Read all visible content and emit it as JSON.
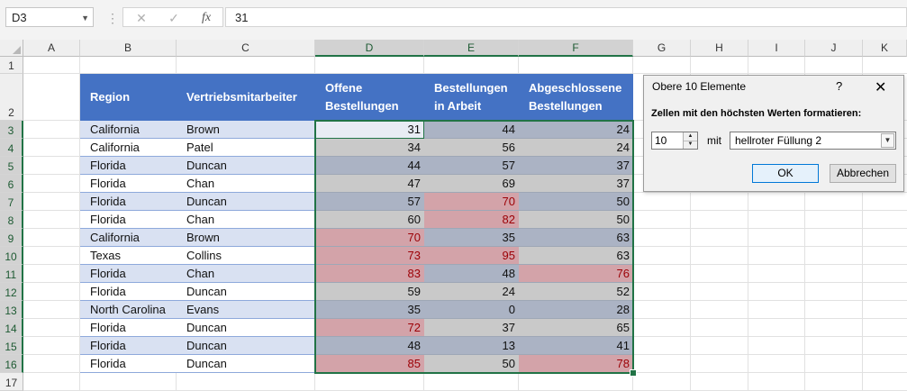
{
  "formula_bar": {
    "name_box": "D3",
    "dots": "⋮",
    "cancel_glyph": "✕",
    "enter_glyph": "✓",
    "function_glyph": "fx",
    "formula_value": "31"
  },
  "columns": [
    "A",
    "B",
    "C",
    "D",
    "E",
    "F",
    "G",
    "H",
    "I",
    "J",
    "K"
  ],
  "rows": [
    "1",
    "2",
    "3",
    "4",
    "5",
    "6",
    "7",
    "8",
    "9",
    "10",
    "11",
    "12",
    "13",
    "14",
    "15",
    "16",
    "17"
  ],
  "table": {
    "headers": [
      "Region",
      "Vertriebsmitarbeiter",
      "Offene Bestellungen",
      "Bestellungen in Arbeit",
      "Abgeschlossene Bestellungen"
    ],
    "rows": [
      {
        "region": "California",
        "rep": "Brown",
        "d": "31",
        "e": "44",
        "f": "24"
      },
      {
        "region": "California",
        "rep": "Patel",
        "d": "34",
        "e": "56",
        "f": "24"
      },
      {
        "region": "Florida",
        "rep": "Duncan",
        "d": "44",
        "e": "57",
        "f": "37"
      },
      {
        "region": "Florida",
        "rep": "Chan",
        "d": "47",
        "e": "69",
        "f": "37"
      },
      {
        "region": "Florida",
        "rep": "Duncan",
        "d": "57",
        "e": "70",
        "f": "50"
      },
      {
        "region": "Florida",
        "rep": "Chan",
        "d": "60",
        "e": "82",
        "f": "50"
      },
      {
        "region": "California",
        "rep": "Brown",
        "d": "70",
        "e": "35",
        "f": "63"
      },
      {
        "region": "Texas",
        "rep": "Collins",
        "d": "73",
        "e": "95",
        "f": "63"
      },
      {
        "region": "Florida",
        "rep": "Chan",
        "d": "83",
        "e": "48",
        "f": "76"
      },
      {
        "region": "Florida",
        "rep": "Duncan",
        "d": "59",
        "e": "24",
        "f": "52"
      },
      {
        "region": "North Carolina",
        "rep": "Evans",
        "d": "35",
        "e": "0",
        "f": "28"
      },
      {
        "region": "Florida",
        "rep": "Duncan",
        "d": "72",
        "e": "37",
        "f": "65"
      },
      {
        "region": "Florida",
        "rep": "Duncan",
        "d": "48",
        "e": "13",
        "f": "41"
      },
      {
        "region": "Florida",
        "rep": "Duncan",
        "d": "85",
        "e": "50",
        "f": "78"
      }
    ],
    "fills": [
      [
        "blue",
        "blue",
        "blue"
      ],
      [
        "gray",
        "gray",
        "gray"
      ],
      [
        "blue",
        "blue",
        "blue"
      ],
      [
        "gray",
        "gray",
        "gray"
      ],
      [
        "blue",
        "red",
        "blue"
      ],
      [
        "gray",
        "red",
        "gray"
      ],
      [
        "red",
        "blue",
        "blue"
      ],
      [
        "red",
        "red",
        "gray"
      ],
      [
        "red",
        "blue",
        "red"
      ],
      [
        "gray",
        "gray",
        "gray"
      ],
      [
        "blue",
        "blue",
        "blue"
      ],
      [
        "red",
        "gray",
        "gray"
      ],
      [
        "blue",
        "blue",
        "blue"
      ],
      [
        "red",
        "gray",
        "red"
      ]
    ]
  },
  "colors": {
    "header_blue": "#4472c4",
    "band_light": "#d9e1f2",
    "fill_blue": "#abb3c4",
    "fill_gray": "#c9c9c9",
    "fill_red": "#d3a3a9",
    "red_text": "#9c0006",
    "selection_green": "#217346"
  },
  "dialog": {
    "title": "Obere 10 Elemente",
    "help": "?",
    "close": "✕",
    "prompt": "Zellen mit den höchsten Werten formatieren:",
    "count_value": "10",
    "mit_label": "mit",
    "format_option": "hellroter Füllung 2",
    "ok_label": "OK",
    "cancel_label": "Abbrechen"
  }
}
